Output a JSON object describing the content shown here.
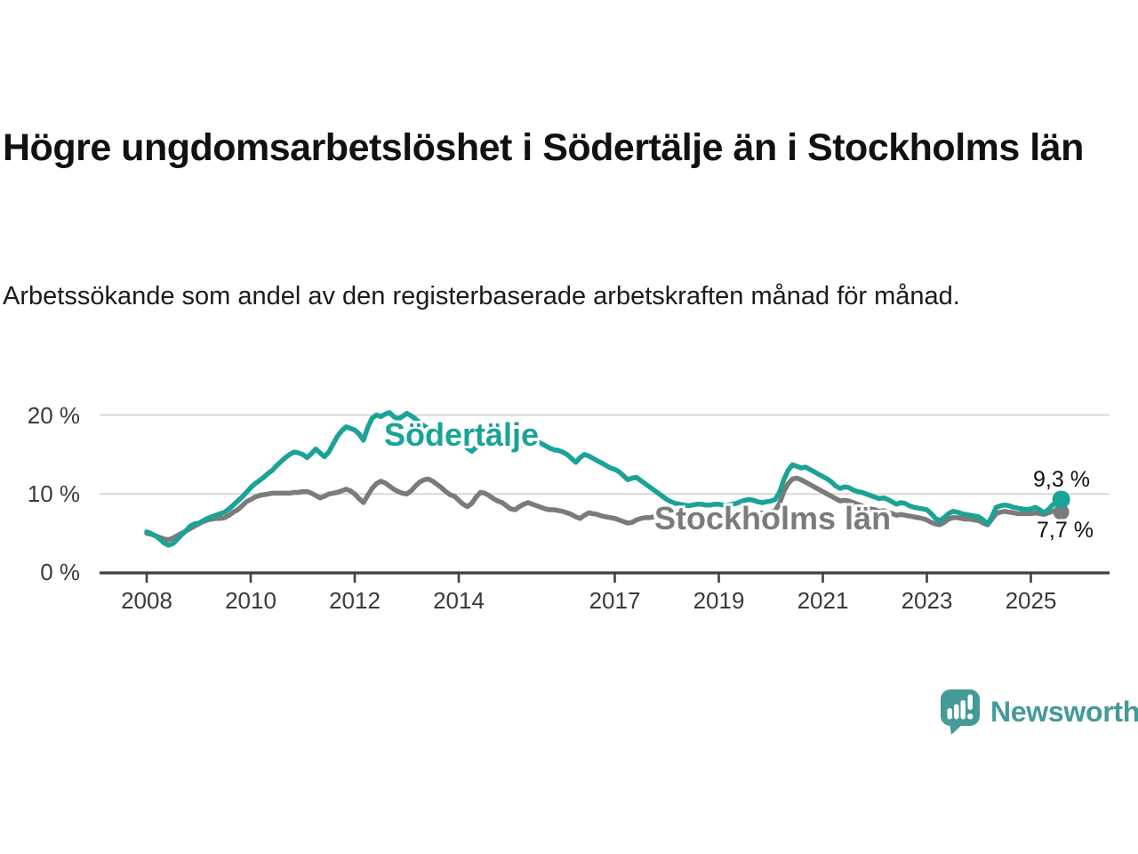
{
  "header": {
    "title": "Högre ungdomsarbetslöshet i Södertälje än i Stockholms län",
    "subtitle": "Arbetssökande som andel av den registerbaserade arbetskraften månad för månad."
  },
  "branding": {
    "name": "Newsworthy",
    "color": "#449a97"
  },
  "colors": {
    "sodertalje": "#1aa396",
    "stockholm": "#7b7b7b",
    "gridline": "#d8d8d8",
    "axis": "#3f3f3f",
    "text": "#3a3a3a"
  },
  "chart_data": {
    "type": "line",
    "unit": "%",
    "frequency": "monthly",
    "start_year": 2008,
    "end_point": "2025-08",
    "ylim": [
      0,
      22
    ],
    "grid": "horizontal",
    "x_ticks": [
      2008,
      2010,
      2012,
      2014,
      2017,
      2019,
      2021,
      2023,
      2025
    ],
    "x_tick_labels": [
      "2008",
      "2010",
      "2012",
      "2014",
      "2017",
      "2019",
      "2021",
      "2023",
      "2025"
    ],
    "y_ticks": [
      {
        "value": 0,
        "label": "0 %"
      },
      {
        "value": 10,
        "label": "10 %"
      },
      {
        "value": 20,
        "label": "20 %"
      }
    ],
    "series": [
      {
        "name": "Stockholms län",
        "color": "#7b7b7b",
        "end_label": "7,7 %",
        "end_value": 7.7,
        "values": [
          5.0,
          4.9,
          4.7,
          4.5,
          4.3,
          4.2,
          4.4,
          4.7,
          5.0,
          5.3,
          5.6,
          5.9,
          6.2,
          6.5,
          6.7,
          6.8,
          6.9,
          6.9,
          7.0,
          7.3,
          7.7,
          8.0,
          8.5,
          9.0,
          9.3,
          9.6,
          9.8,
          9.9,
          10.0,
          10.1,
          10.1,
          10.1,
          10.1,
          10.1,
          10.2,
          10.2,
          10.3,
          10.3,
          10.1,
          9.8,
          9.5,
          9.7,
          10.0,
          10.1,
          10.2,
          10.4,
          10.6,
          10.4,
          10.0,
          9.4,
          8.9,
          9.8,
          10.7,
          11.3,
          11.6,
          11.4,
          11.0,
          10.6,
          10.3,
          10.1,
          10.0,
          10.4,
          11.0,
          11.5,
          11.8,
          11.9,
          11.6,
          11.2,
          10.8,
          10.3,
          9.9,
          9.7,
          9.2,
          8.7,
          8.4,
          8.8,
          9.6,
          10.2,
          10.1,
          9.8,
          9.4,
          9.1,
          8.9,
          8.5,
          8.1,
          8.0,
          8.4,
          8.7,
          8.9,
          8.7,
          8.5,
          8.3,
          8.1,
          8.0,
          8.0,
          7.9,
          7.8,
          7.6,
          7.4,
          7.1,
          6.9,
          7.3,
          7.6,
          7.5,
          7.4,
          7.2,
          7.1,
          7.0,
          6.9,
          6.7,
          6.5,
          6.3,
          6.4,
          6.7,
          6.9,
          7.0,
          7.0,
          7.1,
          7.2,
          7.2,
          7.3,
          7.3,
          7.2,
          7.2,
          7.3,
          7.4,
          7.5,
          7.5,
          7.4,
          7.3,
          7.3,
          7.4,
          7.4,
          7.3,
          7.3,
          7.4,
          7.5,
          7.6,
          7.7,
          7.6,
          7.5,
          7.5,
          7.6,
          7.6,
          7.7,
          7.9,
          8.8,
          10.3,
          11.3,
          11.9,
          12.0,
          11.8,
          11.5,
          11.2,
          10.9,
          10.6,
          10.3,
          10.0,
          9.7,
          9.4,
          9.1,
          9.2,
          9.1,
          8.9,
          8.7,
          8.5,
          8.3,
          8.1,
          8.0,
          7.8,
          7.9,
          7.7,
          7.5,
          7.3,
          7.4,
          7.3,
          7.2,
          7.1,
          7.0,
          6.9,
          6.7,
          6.4,
          6.2,
          6.1,
          6.4,
          6.8,
          7.0,
          7.0,
          6.9,
          6.8,
          6.8,
          6.7,
          6.6,
          6.3,
          6.1,
          6.8,
          7.5,
          7.7,
          7.8,
          7.7,
          7.6,
          7.5,
          7.5,
          7.5,
          7.5,
          7.6,
          7.5,
          7.4,
          7.6,
          7.8,
          7.9,
          7.7
        ]
      },
      {
        "name": "Södertälje",
        "color": "#1aa396",
        "end_label": "9,3 %",
        "end_value": 9.3,
        "values": [
          5.2,
          5.0,
          4.7,
          4.3,
          3.8,
          3.5,
          3.7,
          4.2,
          4.8,
          5.3,
          5.9,
          6.2,
          6.3,
          6.6,
          6.9,
          7.1,
          7.3,
          7.5,
          7.7,
          8.1,
          8.6,
          9.1,
          9.6,
          10.2,
          10.8,
          11.3,
          11.7,
          12.1,
          12.6,
          13.0,
          13.6,
          14.1,
          14.6,
          15.0,
          15.3,
          15.2,
          15.0,
          14.6,
          15.1,
          15.7,
          15.2,
          14.7,
          15.3,
          16.3,
          17.3,
          18.0,
          18.5,
          18.3,
          18.1,
          17.6,
          16.8,
          18.4,
          19.6,
          20.0,
          19.8,
          20.1,
          20.3,
          19.8,
          19.5,
          19.8,
          20.2,
          19.9,
          19.5,
          19.0,
          18.6,
          18.3,
          18.0,
          17.8,
          17.6,
          17.5,
          17.4,
          17.4,
          17.2,
          16.5,
          15.8,
          15.4,
          15.9,
          16.5,
          16.8,
          16.6,
          16.4,
          16.3,
          16.2,
          16.1,
          16.0,
          15.8,
          16.0,
          16.6,
          17.0,
          16.8,
          16.6,
          16.4,
          16.1,
          15.8,
          15.6,
          15.5,
          15.3,
          15.0,
          14.5,
          14.0,
          14.6,
          15.0,
          14.8,
          14.5,
          14.2,
          13.9,
          13.6,
          13.3,
          13.1,
          12.8,
          12.3,
          11.8,
          12.0,
          12.1,
          11.7,
          11.3,
          10.9,
          10.5,
          10.1,
          9.7,
          9.3,
          9.0,
          8.8,
          8.7,
          8.6,
          8.5,
          8.6,
          8.7,
          8.7,
          8.6,
          8.6,
          8.7,
          8.7,
          8.6,
          8.6,
          8.7,
          8.8,
          9.0,
          9.2,
          9.3,
          9.2,
          9.0,
          8.9,
          9.0,
          9.1,
          9.3,
          10.2,
          11.8,
          13.0,
          13.7,
          13.5,
          13.3,
          13.4,
          13.1,
          12.8,
          12.5,
          12.2,
          11.9,
          11.5,
          11.0,
          10.7,
          10.9,
          10.8,
          10.5,
          10.3,
          10.2,
          10.0,
          9.8,
          9.6,
          9.4,
          9.5,
          9.3,
          9.0,
          8.7,
          8.9,
          8.8,
          8.5,
          8.3,
          8.2,
          8.1,
          8.0,
          7.5,
          6.9,
          6.6,
          7.0,
          7.5,
          7.8,
          7.7,
          7.5,
          7.4,
          7.3,
          7.2,
          7.1,
          6.7,
          6.2,
          7.1,
          8.3,
          8.5,
          8.6,
          8.5,
          8.3,
          8.2,
          8.1,
          8.0,
          8.1,
          8.3,
          8.0,
          7.6,
          8.0,
          8.6,
          9.0,
          9.3
        ]
      }
    ]
  }
}
